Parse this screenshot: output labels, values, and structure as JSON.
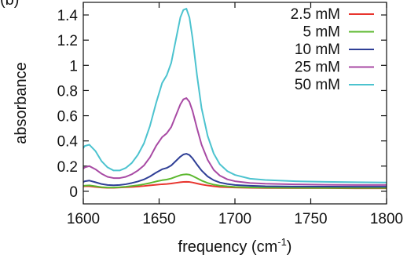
{
  "panel_label": "(b)",
  "chart_data": {
    "type": "line",
    "title": "",
    "xlabel": "frequency (cm",
    "xlabel_superscript": "-1",
    "xlabel_suffix": ")",
    "ylabel": "absorbance",
    "xlim": [
      1600,
      1800
    ],
    "ylim": [
      -0.1,
      1.5
    ],
    "x_ticks": [
      1600,
      1650,
      1700,
      1750,
      1800
    ],
    "y_ticks": [
      0,
      0.2,
      0.4,
      0.6,
      0.8,
      1,
      1.2,
      1.4
    ],
    "x_tick_labels": [
      "1600",
      "1650",
      "1700",
      "1750",
      "1800"
    ],
    "y_tick_labels": [
      "0",
      "0.2",
      "0.4",
      "0.6",
      "0.8",
      "1",
      "1.2",
      "1.4"
    ],
    "grid": false,
    "legend_position": "top-right",
    "x": [
      1598,
      1601,
      1604,
      1608,
      1612,
      1616,
      1620,
      1624,
      1628,
      1632,
      1636,
      1640,
      1644,
      1648,
      1652,
      1655,
      1658,
      1661,
      1664,
      1666,
      1668,
      1670,
      1672,
      1675,
      1678,
      1682,
      1686,
      1690,
      1695,
      1700,
      1710,
      1720,
      1740,
      1760,
      1780,
      1800
    ],
    "series": [
      {
        "name": "2.5 mM",
        "color": "#e8352e",
        "values": [
          0.035,
          0.04,
          0.04,
          0.035,
          0.03,
          0.028,
          0.028,
          0.03,
          0.032,
          0.035,
          0.038,
          0.042,
          0.047,
          0.052,
          0.056,
          0.058,
          0.062,
          0.067,
          0.072,
          0.074,
          0.075,
          0.074,
          0.07,
          0.062,
          0.054,
          0.046,
          0.04,
          0.035,
          0.032,
          0.03,
          0.028,
          0.026,
          0.025,
          0.025,
          0.024,
          0.024
        ]
      },
      {
        "name": "5 mM",
        "color": "#5cb82f",
        "values": [
          0.035,
          0.045,
          0.047,
          0.04,
          0.033,
          0.03,
          0.03,
          0.032,
          0.036,
          0.042,
          0.048,
          0.056,
          0.066,
          0.078,
          0.088,
          0.093,
          0.102,
          0.115,
          0.128,
          0.133,
          0.135,
          0.132,
          0.122,
          0.104,
          0.085,
          0.066,
          0.053,
          0.045,
          0.039,
          0.035,
          0.031,
          0.029,
          0.028,
          0.027,
          0.027,
          0.027
        ]
      },
      {
        "name": "10 mM",
        "color": "#2f3f96",
        "values": [
          0.06,
          0.08,
          0.085,
          0.072,
          0.058,
          0.05,
          0.048,
          0.05,
          0.056,
          0.066,
          0.078,
          0.094,
          0.118,
          0.148,
          0.175,
          0.185,
          0.205,
          0.24,
          0.275,
          0.292,
          0.298,
          0.288,
          0.262,
          0.212,
          0.165,
          0.118,
          0.088,
          0.07,
          0.058,
          0.05,
          0.044,
          0.04,
          0.038,
          0.037,
          0.036,
          0.036
        ]
      },
      {
        "name": "25 mM",
        "color": "#a84aa4",
        "values": [
          0.16,
          0.19,
          0.2,
          0.175,
          0.14,
          0.115,
          0.105,
          0.105,
          0.115,
          0.135,
          0.165,
          0.205,
          0.27,
          0.36,
          0.43,
          0.46,
          0.51,
          0.6,
          0.69,
          0.73,
          0.74,
          0.71,
          0.64,
          0.5,
          0.37,
          0.25,
          0.17,
          0.125,
          0.095,
          0.08,
          0.066,
          0.06,
          0.055,
          0.052,
          0.05,
          0.05
        ]
      },
      {
        "name": "50 mM",
        "color": "#4cc3cf",
        "values": [
          0.31,
          0.36,
          0.37,
          0.32,
          0.24,
          0.19,
          0.165,
          0.165,
          0.185,
          0.225,
          0.29,
          0.38,
          0.52,
          0.7,
          0.86,
          0.92,
          1.02,
          1.2,
          1.38,
          1.44,
          1.45,
          1.38,
          1.22,
          0.92,
          0.66,
          0.44,
          0.3,
          0.215,
          0.16,
          0.13,
          0.1,
          0.09,
          0.08,
          0.075,
          0.072,
          0.07
        ]
      }
    ]
  }
}
